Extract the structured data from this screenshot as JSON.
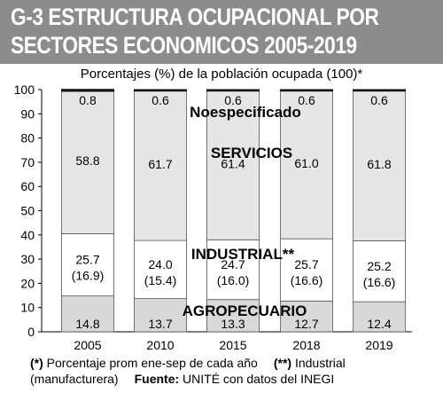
{
  "title": {
    "line1": "G-3 ESTRUCTURA OCUPACIONAL POR",
    "line2": "SECTORES ECONOMICOS 2005-2019"
  },
  "subtitle": "Porcentajes (%) de la población ocupada (100)*",
  "colors": {
    "title_band": "#8c8c8c",
    "agropecuario": "#d9d9d9",
    "industrial": "#ffffff",
    "servicios": "#e6e6e6",
    "no_especificado": "#111111",
    "outline": "#555555"
  },
  "chart_data": {
    "type": "bar",
    "stacked": true,
    "categories": [
      "2005",
      "2010",
      "2015",
      "2018",
      "2019"
    ],
    "ylim": [
      0,
      100
    ],
    "yticks": [
      0,
      10,
      20,
      30,
      40,
      50,
      60,
      70,
      80,
      90,
      100
    ],
    "series": [
      {
        "name": "AGROPECUARIO",
        "values": [
          14.8,
          13.7,
          13.3,
          12.7,
          12.4
        ],
        "labels": [
          "14.8",
          "13.7",
          "13.3",
          "12.7",
          "12.4"
        ]
      },
      {
        "name": "INDUSTRIAL**",
        "values": [
          25.7,
          24.0,
          24.7,
          25.7,
          25.2
        ],
        "labels": [
          "25.7",
          "24.0",
          "24.7",
          "25.7",
          "25.2"
        ],
        "sub_labels": [
          "(16.9)",
          "(15.4)",
          "(16.0)",
          "(16.6)",
          "(16.6)"
        ]
      },
      {
        "name": "SERVICIOS",
        "values": [
          58.8,
          61.7,
          61.4,
          61.0,
          61.8
        ],
        "labels": [
          "58.8",
          "61.7",
          "61.4",
          "61.0",
          "61.8"
        ]
      },
      {
        "name": "Noespecificado",
        "values": [
          0.8,
          0.6,
          0.6,
          0.6,
          0.6
        ],
        "labels": [
          "0.8",
          "0.6",
          "0.6",
          "0.6",
          "0.6"
        ]
      }
    ]
  },
  "footnote": {
    "note1_marker": "(*)",
    "note1_text": "Porcentaje prom ene-sep de cada año",
    "note2_marker": "(**)",
    "note2_text": "Industrial",
    "note2_cont": "(manufacturera)",
    "source_label": "Fuente:",
    "source_text": "UNITÉ con datos del INEGI"
  }
}
